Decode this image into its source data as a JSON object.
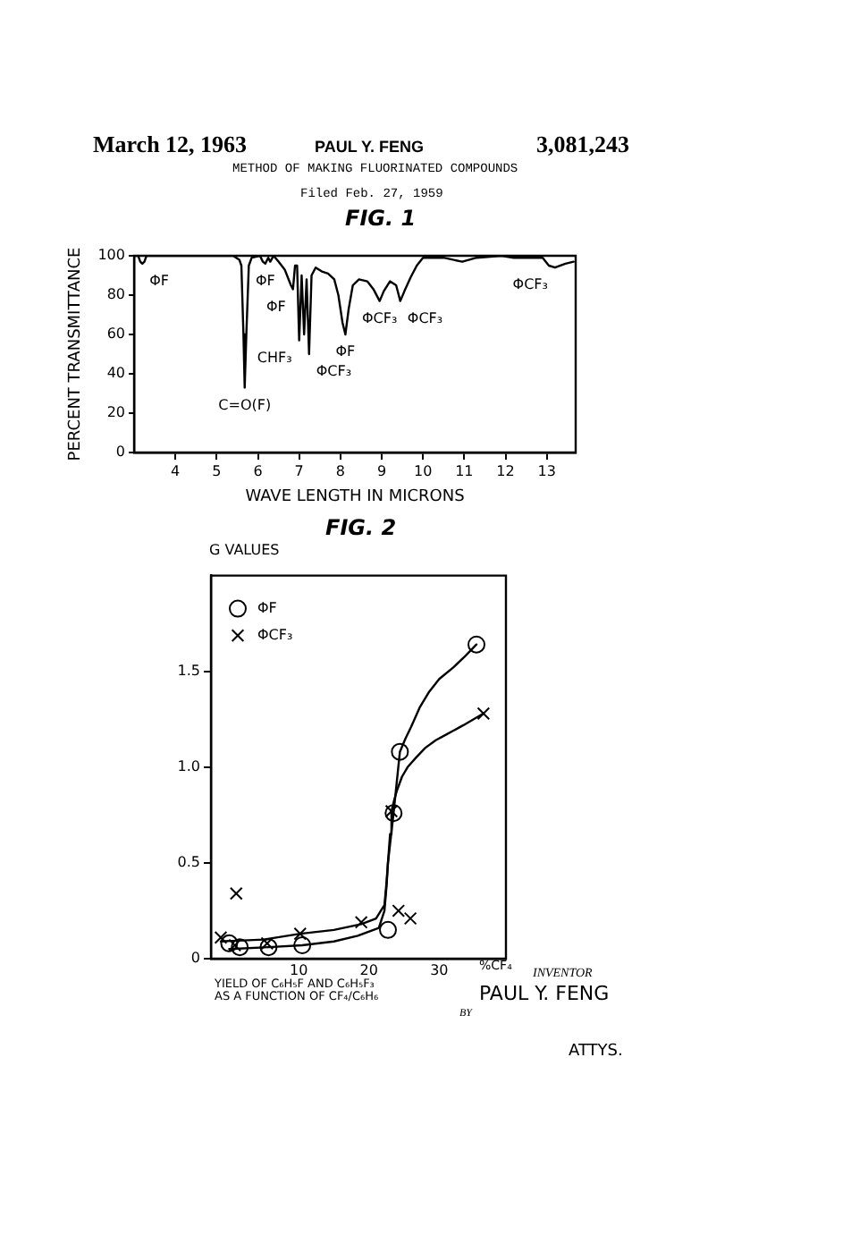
{
  "chart_data": [
    {
      "type": "line",
      "title": "FIG. 1",
      "xlabel": "WAVE LENGTH IN MICRONS",
      "ylabel": "PERCENT TRANSMITTANCE",
      "x": [
        3.0,
        3.1,
        3.15,
        3.2,
        3.25,
        3.3,
        5.4,
        5.55,
        5.6,
        5.65,
        5.68,
        5.72,
        5.78,
        5.85,
        6.05,
        6.12,
        6.18,
        6.25,
        6.3,
        6.38,
        6.5,
        6.65,
        6.8,
        6.85,
        6.9,
        6.95,
        7.0,
        7.06,
        7.12,
        7.18,
        7.24,
        7.3,
        7.4,
        7.55,
        7.7,
        7.85,
        7.95,
        8.05,
        8.12,
        8.2,
        8.3,
        8.45,
        8.65,
        8.8,
        8.95,
        9.05,
        9.2,
        9.35,
        9.45,
        9.55,
        9.7,
        9.85,
        10.0,
        10.2,
        10.5,
        10.95,
        11.3,
        11.9,
        12.2,
        12.9,
        13.05,
        13.2,
        13.45,
        13.65
      ],
      "series": [
        {
          "color": "#000000",
          "values": [
            100,
            100,
            97,
            96,
            97,
            100,
            100,
            98,
            95,
            60,
            33,
            60,
            95,
            99,
            100,
            97,
            96,
            99,
            97,
            100,
            97,
            93,
            85,
            83,
            95,
            95,
            57,
            90,
            60,
            88,
            50,
            90,
            94,
            92,
            91,
            88,
            80,
            66,
            60,
            73,
            85,
            88,
            87,
            83,
            77,
            82,
            87,
            85,
            77,
            82,
            89,
            95,
            99,
            99,
            99,
            97,
            99,
            100,
            99,
            99,
            95,
            94,
            96,
            97
          ]
        }
      ],
      "xlim": [
        3,
        13.7
      ],
      "xticks": [
        4,
        5,
        6,
        7,
        8,
        9,
        10,
        11,
        12,
        13
      ],
      "ylim": [
        0,
        100
      ],
      "yticks": [
        0,
        20,
        40,
        60,
        80,
        100
      ],
      "annotations": [
        "March 12, 1963",
        "PAUL Y. FENG",
        "3,081,243",
        "METHOD OF MAKING FLUORINATED COMPOUNDS",
        "Filed Feb. 27, 1959",
        {
          "text": "ΦF",
          "x": 3.2,
          "y": 96
        },
        {
          "text": "C=O(F)",
          "x": 5.68,
          "y": 33
        },
        {
          "text": "ΦF",
          "x": 6.18,
          "y": 96
        },
        {
          "text": "ΦF",
          "x": 6.85,
          "y": 83
        },
        {
          "text": "CHF₃",
          "x": 7.0,
          "y": 57
        },
        {
          "text": "ΦCF₃",
          "x": 7.24,
          "y": 50
        },
        {
          "text": "ΦF",
          "x": 8.12,
          "y": 60
        },
        {
          "text": "ΦCF₃",
          "x": 8.95,
          "y": 77
        },
        {
          "text": "ΦCF₃",
          "x": 9.45,
          "y": 77
        },
        {
          "text": "ΦCF₃",
          "x": 13.2,
          "y": 94
        }
      ]
    },
    {
      "type": "scatter",
      "title": "FIG. 2",
      "ylabel": "G VALUES",
      "xlabel": "%CF₄",
      "legend": "top left",
      "xlim": [
        -2.5,
        39.5
      ],
      "xticks": [
        10,
        20,
        30
      ],
      "ylim": [
        0,
        2
      ],
      "yticks": [
        0,
        0.5,
        {
          "value": 1,
          "label": "1.0"
        },
        1.5
      ],
      "series": [
        {
          "name": "ΦF",
          "type": "scatter",
          "marker": "circle",
          "color": "#000000",
          "x": [
            0.1,
            1.6,
            5.7,
            10.5,
            22.7,
            23.5,
            24.4,
            35.3
          ],
          "values": [
            0.08,
            0.06,
            0.06,
            0.07,
            0.15,
            0.76,
            1.08,
            1.64
          ]
        },
        {
          "name": "ΦCF₃",
          "type": "scatter",
          "marker": "cross",
          "color": "#000000",
          "x": [
            -1.1,
            0.9,
            1.1,
            5.5,
            10.2,
            18.9,
            23.2,
            24.2,
            25.9,
            36.3
          ],
          "values": [
            0.11,
            0.07,
            0.34,
            0.08,
            0.13,
            0.19,
            0.77,
            0.25,
            0.21,
            1.28
          ]
        },
        {
          "type": "line",
          "color": "#000000",
          "x": [
            0.1,
            5.7,
            10.5,
            15,
            18.4,
            21.4,
            22.2,
            22.5,
            22.7,
            23.1,
            23.5,
            24.4,
            25.2,
            26,
            27.2,
            28.5,
            30,
            32,
            33.7,
            35.3
          ],
          "values": [
            0.05,
            0.06,
            0.07,
            0.09,
            0.12,
            0.16,
            0.25,
            0.38,
            0.5,
            0.63,
            0.76,
            1.08,
            1.15,
            1.21,
            1.31,
            1.39,
            1.46,
            1.52,
            1.58,
            1.64
          ]
        },
        {
          "type": "line",
          "color": "#000000",
          "x": [
            -1.1,
            5,
            10.2,
            15,
            18.9,
            21,
            22.2,
            22.5,
            22.7,
            23,
            23.2,
            23.6,
            24,
            24.7,
            25.5,
            26.7,
            28,
            29.5,
            31,
            33.5,
            36.3
          ],
          "values": [
            0.09,
            0.1,
            0.13,
            0.15,
            0.18,
            0.21,
            0.28,
            0.4,
            0.5,
            0.65,
            0.77,
            0.83,
            0.88,
            0.95,
            1.0,
            1.05,
            1.1,
            1.14,
            1.17,
            1.22,
            1.28
          ]
        }
      ],
      "annotations": [
        "YIELD OF C₆H₅F AND C₆H₅F₃",
        "AS A FUNCTION OF CF₄/C₆H₆",
        "INVENTOR",
        "PAUL Y. FENG",
        "BY",
        "ATTYS."
      ]
    }
  ]
}
